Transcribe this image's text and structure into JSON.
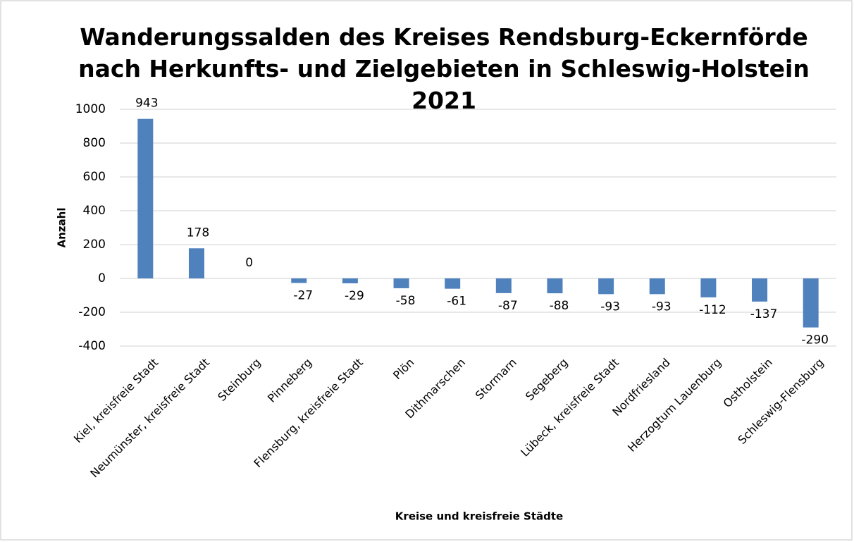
{
  "chart_data": {
    "type": "bar",
    "title": "Wanderungssalden des Kreises Rendsburg-Eckernförde nach Herkunfts- und Zielgebieten in Schleswig-Holstein 2021",
    "x_label": "Kreise und kreisfreie Städte",
    "y_label": "Anzahl",
    "categories": [
      "Kiel, kreisfreie Stadt",
      "Neumünster, kreisfreie Stadt",
      "Steinburg",
      "Pinneberg",
      "Flensburg, kreisfreie Stadt",
      "Plön",
      "Dithmarschen",
      "Stormarn",
      "Segeberg",
      "Lübeck, kreisfreie Stadt",
      "Nordfriesland",
      "Herzogtum Lauenburg",
      "Ostholstein",
      "Schleswig-Flensburg"
    ],
    "values": [
      943,
      178,
      0,
      -27,
      -29,
      -58,
      -61,
      -87,
      -88,
      -93,
      -93,
      -112,
      -137,
      -290
    ],
    "color": "#4f81bd",
    "ylim": [
      -400,
      1000
    ],
    "yticks": [
      -400,
      -200,
      0,
      200,
      400,
      600,
      800,
      1000
    ],
    "grid": true
  }
}
